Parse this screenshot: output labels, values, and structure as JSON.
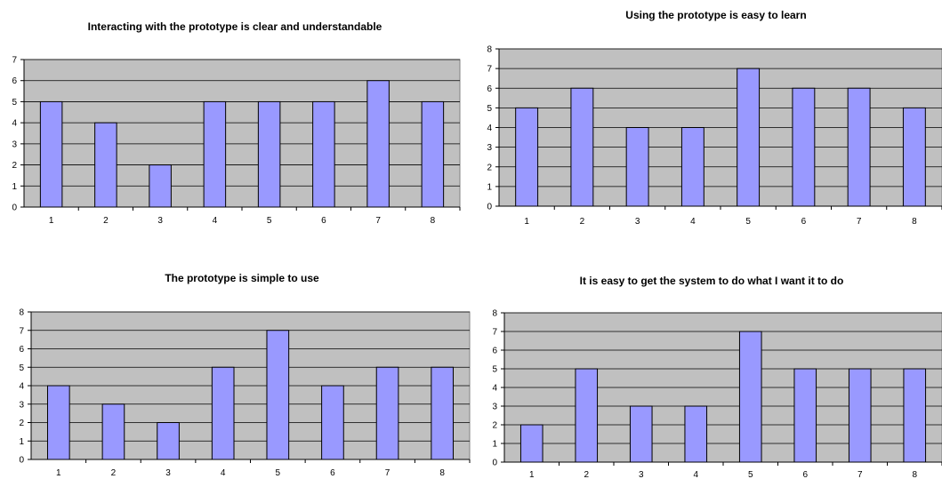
{
  "chart_data": [
    {
      "type": "bar",
      "title": "Interacting with the prototype is clear and understandable",
      "categories": [
        "1",
        "2",
        "3",
        "4",
        "5",
        "6",
        "7",
        "8"
      ],
      "values": [
        5,
        4,
        2,
        5,
        5,
        5,
        6,
        5
      ],
      "ylim": [
        0,
        7
      ],
      "yticks": [
        "0",
        "1",
        "2",
        "3",
        "4",
        "5",
        "6",
        "7"
      ],
      "xlabel": "",
      "ylabel": "",
      "grid": true,
      "colors": {
        "bar": "#9999ff",
        "plot": "#c0c0c0"
      }
    },
    {
      "type": "bar",
      "title": "Using the prototype is easy to learn",
      "categories": [
        "1",
        "2",
        "3",
        "4",
        "5",
        "6",
        "7",
        "8"
      ],
      "values": [
        5,
        6,
        4,
        4,
        7,
        6,
        6,
        5
      ],
      "ylim": [
        0,
        8
      ],
      "yticks": [
        "0",
        "1",
        "2",
        "3",
        "4",
        "5",
        "6",
        "7",
        "8"
      ],
      "xlabel": "",
      "ylabel": "",
      "grid": true,
      "colors": {
        "bar": "#9999ff",
        "plot": "#c0c0c0"
      }
    },
    {
      "type": "bar",
      "title": "The prototype is simple to use",
      "categories": [
        "1",
        "2",
        "3",
        "4",
        "5",
        "6",
        "7",
        "8"
      ],
      "values": [
        4,
        3,
        2,
        5,
        7,
        4,
        5,
        5
      ],
      "ylim": [
        0,
        8
      ],
      "yticks": [
        "0",
        "1",
        "2",
        "3",
        "4",
        "5",
        "6",
        "7",
        "8"
      ],
      "xlabel": "",
      "ylabel": "",
      "grid": true,
      "colors": {
        "bar": "#9999ff",
        "plot": "#c0c0c0"
      }
    },
    {
      "type": "bar",
      "title": "It is easy to get the system to do what I want it to do",
      "categories": [
        "1",
        "2",
        "3",
        "4",
        "5",
        "6",
        "7",
        "8"
      ],
      "values": [
        2,
        5,
        3,
        3,
        7,
        5,
        5,
        5
      ],
      "ylim": [
        0,
        8
      ],
      "yticks": [
        "0",
        "1",
        "2",
        "3",
        "4",
        "5",
        "6",
        "7",
        "8"
      ],
      "xlabel": "",
      "ylabel": "",
      "grid": true,
      "colors": {
        "bar": "#9999ff",
        "plot": "#c0c0c0"
      }
    }
  ]
}
